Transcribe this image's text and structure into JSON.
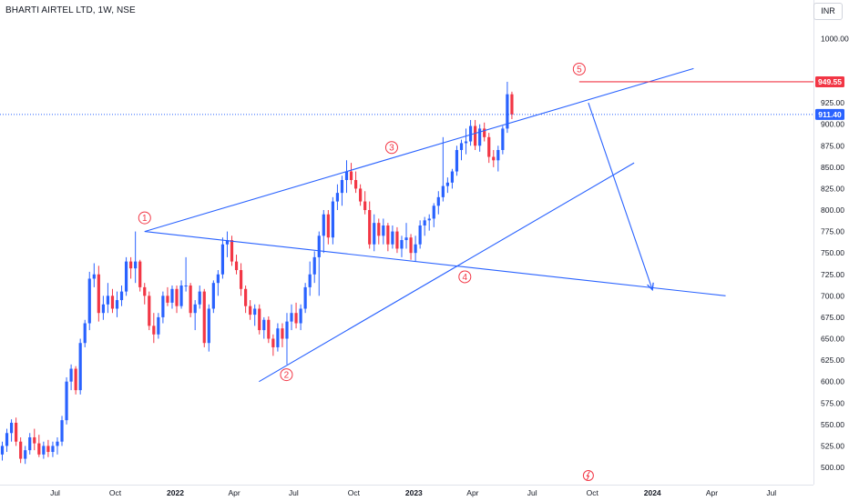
{
  "symbol_title": "BHARTI AIRTEL LTD, 1W, NSE",
  "currency": "INR",
  "colors": {
    "up": "#2962ff",
    "down": "#f23645",
    "trendline": "#2962ff",
    "wave_label": "#f23645",
    "current_price_line": "#2962ff",
    "target_line": "#f23645"
  },
  "chart_data": {
    "type": "candlestick",
    "title": "BHARTI AIRTEL LTD, 1W, NSE",
    "y_tick_labels": [
      "500.00",
      "525.00",
      "550.00",
      "575.00",
      "600.00",
      "625.00",
      "650.00",
      "675.00",
      "700.00",
      "725.00",
      "750.00",
      "775.00",
      "800.00",
      "825.00",
      "850.00",
      "875.00",
      "900.00",
      "925.00",
      "1000.00"
    ],
    "ylim": [
      490,
      1020
    ],
    "x_tick_labels": [
      "Jul",
      "Oct",
      "2022",
      "Apr",
      "Jul",
      "Oct",
      "2023",
      "Apr",
      "Jul",
      "Oct",
      "2024",
      "Apr",
      "Jul"
    ],
    "price_badges": {
      "last_price": "911.40",
      "marked_high": "949.55"
    },
    "wave_labels": [
      {
        "label": "1",
        "time": "2021-11-15",
        "price": 775
      },
      {
        "label": "2",
        "time": "2022-06-20",
        "price": 625
      },
      {
        "label": "3",
        "time": "2022-11-28",
        "price": 857
      },
      {
        "label": "4",
        "time": "2023-03-20",
        "price": 737
      },
      {
        "label": "5",
        "time": "2023-09-11",
        "price": 949.55
      }
    ],
    "trendlines": [
      {
        "name": "upper-channel",
        "from": {
          "time": "2021-11-15",
          "price": 775
        },
        "to": {
          "time": "2024-03-04",
          "price": 965
        }
      },
      {
        "name": "lower-channel",
        "from": {
          "time": "2022-05-09",
          "price": 600
        },
        "to": {
          "time": "2023-12-04",
          "price": 855
        }
      },
      {
        "name": "wave-1-4-line",
        "from": {
          "time": "2021-11-15",
          "price": 775
        },
        "to": {
          "time": "2024-04-22",
          "price": 700
        }
      },
      {
        "name": "projection-arrow",
        "from": {
          "time": "2023-09-25",
          "price": 925
        },
        "to": {
          "time": "2024-01-01",
          "price": 707
        }
      }
    ],
    "candles": [
      {
        "o": 515,
        "h": 530,
        "l": 508,
        "c": 525
      },
      {
        "o": 525,
        "h": 545,
        "l": 518,
        "c": 540
      },
      {
        "o": 540,
        "h": 556,
        "l": 530,
        "c": 552
      },
      {
        "o": 552,
        "h": 558,
        "l": 525,
        "c": 530
      },
      {
        "o": 530,
        "h": 535,
        "l": 505,
        "c": 510
      },
      {
        "o": 510,
        "h": 525,
        "l": 504,
        "c": 520
      },
      {
        "o": 520,
        "h": 540,
        "l": 515,
        "c": 535
      },
      {
        "o": 535,
        "h": 545,
        "l": 520,
        "c": 528
      },
      {
        "o": 528,
        "h": 538,
        "l": 512,
        "c": 515
      },
      {
        "o": 515,
        "h": 530,
        "l": 510,
        "c": 525
      },
      {
        "o": 525,
        "h": 532,
        "l": 512,
        "c": 518
      },
      {
        "o": 518,
        "h": 530,
        "l": 512,
        "c": 525
      },
      {
        "o": 525,
        "h": 535,
        "l": 515,
        "c": 530
      },
      {
        "o": 530,
        "h": 560,
        "l": 525,
        "c": 555
      },
      {
        "o": 555,
        "h": 605,
        "l": 550,
        "c": 600
      },
      {
        "o": 600,
        "h": 620,
        "l": 590,
        "c": 615
      },
      {
        "o": 615,
        "h": 618,
        "l": 585,
        "c": 590
      },
      {
        "o": 590,
        "h": 650,
        "l": 585,
        "c": 645
      },
      {
        "o": 645,
        "h": 672,
        "l": 640,
        "c": 668
      },
      {
        "o": 668,
        "h": 728,
        "l": 660,
        "c": 720
      },
      {
        "o": 720,
        "h": 738,
        "l": 710,
        "c": 725
      },
      {
        "o": 725,
        "h": 735,
        "l": 670,
        "c": 680
      },
      {
        "o": 680,
        "h": 700,
        "l": 672,
        "c": 690
      },
      {
        "o": 690,
        "h": 715,
        "l": 680,
        "c": 700
      },
      {
        "o": 700,
        "h": 708,
        "l": 680,
        "c": 685
      },
      {
        "o": 685,
        "h": 705,
        "l": 675,
        "c": 695
      },
      {
        "o": 695,
        "h": 712,
        "l": 688,
        "c": 705
      },
      {
        "o": 705,
        "h": 745,
        "l": 700,
        "c": 740
      },
      {
        "o": 740,
        "h": 745,
        "l": 720,
        "c": 732
      },
      {
        "o": 732,
        "h": 775,
        "l": 715,
        "c": 740
      },
      {
        "o": 740,
        "h": 742,
        "l": 705,
        "c": 710
      },
      {
        "o": 710,
        "h": 715,
        "l": 690,
        "c": 700
      },
      {
        "o": 700,
        "h": 705,
        "l": 660,
        "c": 665
      },
      {
        "o": 665,
        "h": 680,
        "l": 645,
        "c": 655
      },
      {
        "o": 655,
        "h": 680,
        "l": 650,
        "c": 675
      },
      {
        "o": 675,
        "h": 705,
        "l": 668,
        "c": 700
      },
      {
        "o": 700,
        "h": 710,
        "l": 688,
        "c": 692
      },
      {
        "o": 692,
        "h": 712,
        "l": 685,
        "c": 708
      },
      {
        "o": 708,
        "h": 712,
        "l": 680,
        "c": 688
      },
      {
        "o": 688,
        "h": 718,
        "l": 685,
        "c": 712
      },
      {
        "o": 712,
        "h": 745,
        "l": 705,
        "c": 712
      },
      {
        "o": 712,
        "h": 715,
        "l": 675,
        "c": 680
      },
      {
        "o": 680,
        "h": 695,
        "l": 660,
        "c": 690
      },
      {
        "o": 690,
        "h": 712,
        "l": 685,
        "c": 705
      },
      {
        "o": 705,
        "h": 708,
        "l": 640,
        "c": 645
      },
      {
        "o": 645,
        "h": 690,
        "l": 635,
        "c": 685
      },
      {
        "o": 685,
        "h": 718,
        "l": 680,
        "c": 715
      },
      {
        "o": 715,
        "h": 730,
        "l": 700,
        "c": 725
      },
      {
        "o": 725,
        "h": 768,
        "l": 720,
        "c": 760
      },
      {
        "o": 760,
        "h": 775,
        "l": 745,
        "c": 765
      },
      {
        "o": 765,
        "h": 770,
        "l": 735,
        "c": 740
      },
      {
        "o": 740,
        "h": 748,
        "l": 725,
        "c": 730
      },
      {
        "o": 730,
        "h": 738,
        "l": 700,
        "c": 708
      },
      {
        "o": 708,
        "h": 712,
        "l": 680,
        "c": 688
      },
      {
        "o": 688,
        "h": 695,
        "l": 672,
        "c": 678
      },
      {
        "o": 678,
        "h": 690,
        "l": 665,
        "c": 685
      },
      {
        "o": 685,
        "h": 690,
        "l": 655,
        "c": 660
      },
      {
        "o": 660,
        "h": 675,
        "l": 650,
        "c": 672
      },
      {
        "o": 672,
        "h": 676,
        "l": 645,
        "c": 650
      },
      {
        "o": 650,
        "h": 655,
        "l": 630,
        "c": 640
      },
      {
        "o": 640,
        "h": 668,
        "l": 635,
        "c": 662
      },
      {
        "o": 662,
        "h": 668,
        "l": 640,
        "c": 650
      },
      {
        "o": 650,
        "h": 680,
        "l": 620,
        "c": 670
      },
      {
        "o": 670,
        "h": 690,
        "l": 660,
        "c": 680
      },
      {
        "o": 680,
        "h": 692,
        "l": 662,
        "c": 668
      },
      {
        "o": 668,
        "h": 690,
        "l": 660,
        "c": 685
      },
      {
        "o": 685,
        "h": 715,
        "l": 680,
        "c": 710
      },
      {
        "o": 710,
        "h": 740,
        "l": 700,
        "c": 725
      },
      {
        "o": 725,
        "h": 752,
        "l": 715,
        "c": 745
      },
      {
        "o": 745,
        "h": 775,
        "l": 700,
        "c": 770
      },
      {
        "o": 770,
        "h": 800,
        "l": 750,
        "c": 795
      },
      {
        "o": 795,
        "h": 800,
        "l": 760,
        "c": 768
      },
      {
        "o": 768,
        "h": 815,
        "l": 760,
        "c": 810
      },
      {
        "o": 810,
        "h": 830,
        "l": 800,
        "c": 820
      },
      {
        "o": 820,
        "h": 840,
        "l": 805,
        "c": 835
      },
      {
        "o": 835,
        "h": 858,
        "l": 820,
        "c": 845
      },
      {
        "o": 845,
        "h": 855,
        "l": 830,
        "c": 835
      },
      {
        "o": 835,
        "h": 845,
        "l": 820,
        "c": 825
      },
      {
        "o": 825,
        "h": 830,
        "l": 805,
        "c": 810
      },
      {
        "o": 810,
        "h": 822,
        "l": 795,
        "c": 800
      },
      {
        "o": 800,
        "h": 810,
        "l": 755,
        "c": 760
      },
      {
        "o": 760,
        "h": 795,
        "l": 752,
        "c": 785
      },
      {
        "o": 785,
        "h": 790,
        "l": 760,
        "c": 770
      },
      {
        "o": 770,
        "h": 790,
        "l": 760,
        "c": 782
      },
      {
        "o": 782,
        "h": 785,
        "l": 752,
        "c": 760
      },
      {
        "o": 760,
        "h": 782,
        "l": 755,
        "c": 775
      },
      {
        "o": 775,
        "h": 780,
        "l": 750,
        "c": 755
      },
      {
        "o": 755,
        "h": 770,
        "l": 745,
        "c": 765
      },
      {
        "o": 765,
        "h": 785,
        "l": 755,
        "c": 768
      },
      {
        "o": 768,
        "h": 772,
        "l": 742,
        "c": 750
      },
      {
        "o": 750,
        "h": 770,
        "l": 740,
        "c": 760
      },
      {
        "o": 760,
        "h": 788,
        "l": 755,
        "c": 782
      },
      {
        "o": 782,
        "h": 792,
        "l": 770,
        "c": 788
      },
      {
        "o": 788,
        "h": 795,
        "l": 776,
        "c": 790
      },
      {
        "o": 790,
        "h": 808,
        "l": 780,
        "c": 805
      },
      {
        "o": 805,
        "h": 822,
        "l": 795,
        "c": 815
      },
      {
        "o": 815,
        "h": 885,
        "l": 810,
        "c": 828
      },
      {
        "o": 828,
        "h": 838,
        "l": 820,
        "c": 832
      },
      {
        "o": 832,
        "h": 848,
        "l": 825,
        "c": 845
      },
      {
        "o": 845,
        "h": 875,
        "l": 840,
        "c": 870
      },
      {
        "o": 870,
        "h": 882,
        "l": 858,
        "c": 878
      },
      {
        "o": 878,
        "h": 895,
        "l": 865,
        "c": 880
      },
      {
        "o": 880,
        "h": 905,
        "l": 875,
        "c": 898
      },
      {
        "o": 898,
        "h": 905,
        "l": 870,
        "c": 875
      },
      {
        "o": 875,
        "h": 900,
        "l": 868,
        "c": 895
      },
      {
        "o": 895,
        "h": 902,
        "l": 880,
        "c": 885
      },
      {
        "o": 885,
        "h": 890,
        "l": 855,
        "c": 862
      },
      {
        "o": 862,
        "h": 870,
        "l": 850,
        "c": 858
      },
      {
        "o": 858,
        "h": 875,
        "l": 845,
        "c": 870
      },
      {
        "o": 870,
        "h": 898,
        "l": 865,
        "c": 895
      },
      {
        "o": 895,
        "h": 949.55,
        "l": 890,
        "c": 935
      },
      {
        "o": 935,
        "h": 938,
        "l": 906,
        "c": 911.4
      }
    ]
  }
}
